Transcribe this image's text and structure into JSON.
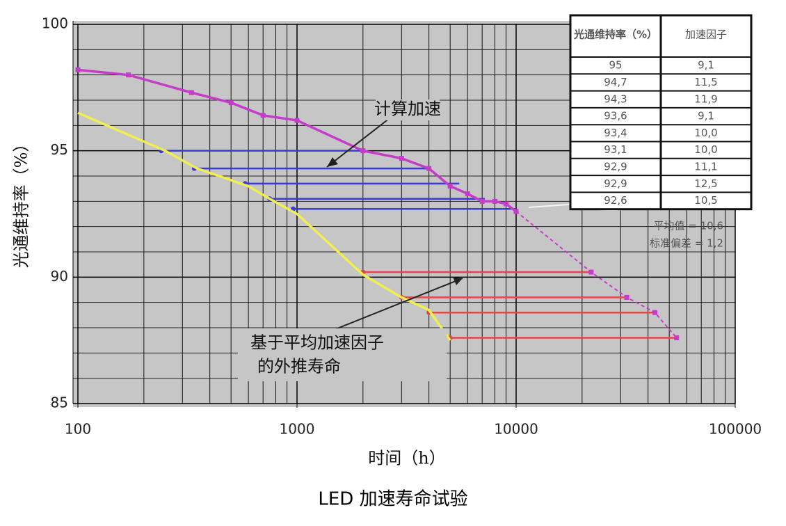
{
  "chart_data": {
    "type": "line",
    "caption": "LED 加速寿命试验",
    "x_label": "时间（h）",
    "y_label": "光通维持率（%）",
    "xscale": "log",
    "xlim": [
      100,
      100000
    ],
    "ylim": [
      85,
      100
    ],
    "xticks": [
      100,
      1000,
      10000,
      100000
    ],
    "yticks": [
      85,
      90,
      95,
      100
    ],
    "grid": true,
    "series": [
      {
        "color": "#c43cc8",
        "dashed": false,
        "markers": true,
        "x": [
          100,
          170,
          330,
          500,
          700,
          1000,
          2000,
          3000,
          4000,
          5000,
          6000,
          7000,
          8000,
          9000,
          10000
        ],
        "values": [
          98.2,
          98.0,
          97.3,
          96.9,
          96.4,
          96.2,
          95.0,
          94.7,
          94.3,
          93.6,
          93.3,
          93.0,
          93.0,
          92.9,
          92.6
        ]
      },
      {
        "color": "#c43cc8",
        "dashed": true,
        "markers": true,
        "x": [
          10000,
          22000,
          32000,
          43000,
          54000
        ],
        "values": [
          92.6,
          90.2,
          89.2,
          88.6,
          87.6
        ]
      },
      {
        "color": "#f0ee50",
        "dashed": false,
        "markers": false,
        "x": [
          100,
          250,
          350,
          600,
          750,
          1000,
          2000,
          3000,
          4000,
          5000
        ],
        "values": [
          96.5,
          95.0,
          94.3,
          93.6,
          93.1,
          92.5,
          90.1,
          89.2,
          88.7,
          87.5
        ]
      }
    ],
    "connectors": [
      {
        "color": "#3a3ad8",
        "values": [
          95.0,
          94.3,
          93.7,
          93.1,
          92.7
        ],
        "x_start": [
          240,
          340,
          580,
          750,
          960
        ],
        "x_end": [
          2000,
          4000,
          5500,
          7200,
          10000
        ]
      },
      {
        "color": "#e04848",
        "values": [
          90.2,
          89.2,
          88.6,
          87.6
        ],
        "x_start": [
          2000,
          3000,
          4000,
          5000
        ],
        "x_end": [
          22000,
          32000,
          43000,
          54000
        ]
      }
    ],
    "annotations": [
      {
        "text_lines": [
          "计算加速"
        ]
      },
      {
        "text_lines": [
          "基于平均加速因子",
          "的外推寿命"
        ]
      }
    ],
    "table": {
      "header": [
        "光通维持率（%）",
        "加速因子"
      ],
      "rows": [
        [
          "95",
          "9,1"
        ],
        [
          "94,7",
          "11,5"
        ],
        [
          "94,3",
          "11,9"
        ],
        [
          "93,6",
          "9,1"
        ],
        [
          "93,4",
          "10,0"
        ],
        [
          "93,1",
          "10,0"
        ],
        [
          "92,9",
          "11,1"
        ],
        [
          "92,9",
          "12,5"
        ],
        [
          "92,6",
          "10,5"
        ]
      ]
    },
    "stats": [
      "平均值 = 10,6",
      "标准偏差 = 1,2"
    ]
  }
}
